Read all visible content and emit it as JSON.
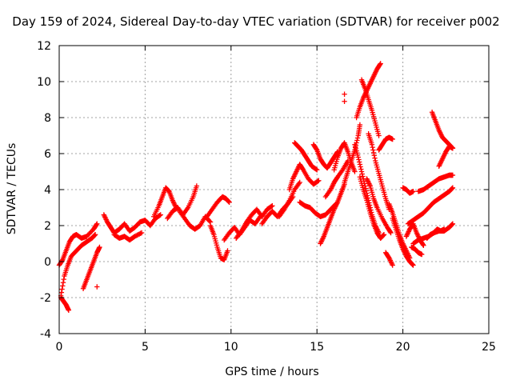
{
  "chart_data": {
    "type": "scatter",
    "title": "Day 159 of 2024, Sidereal Day-to-day VTEC variation (SDTVAR) for receiver p002",
    "xlabel": "GPS time / hours",
    "ylabel": "SDTVAR / TECUs",
    "xlim": [
      0,
      25
    ],
    "ylim": [
      -4,
      12
    ],
    "xticks": [
      0,
      5,
      10,
      15,
      20,
      25
    ],
    "yticks": [
      -4,
      -2,
      0,
      2,
      4,
      6,
      8,
      10,
      12
    ],
    "grid": true,
    "marker": "+",
    "color": "#ff0000",
    "series": [
      {
        "x": [
          0.0,
          0.2,
          0.4,
          0.6,
          0.8,
          1.0,
          1.3,
          1.6,
          2.0,
          2.2
        ],
        "y": [
          -0.2,
          0.1,
          0.6,
          1.1,
          1.4,
          1.5,
          1.3,
          1.4,
          1.8,
          2.1
        ]
      },
      {
        "x": [
          0.1,
          0.3,
          0.5,
          0.7,
          1.0,
          1.3,
          1.6,
          1.9,
          2.1
        ],
        "y": [
          -1.9,
          -0.8,
          -0.2,
          0.3,
          0.6,
          0.9,
          1.1,
          1.3,
          1.5
        ]
      },
      {
        "x": [
          0.1,
          0.25,
          0.4,
          0.55
        ],
        "y": [
          -2.0,
          -2.2,
          -2.4,
          -2.7
        ]
      },
      {
        "x": [
          1.4,
          1.6,
          1.8,
          2.0,
          2.2,
          2.35
        ],
        "y": [
          -1.5,
          -1.0,
          -0.5,
          0.0,
          0.5,
          0.8
        ]
      },
      {
        "x": [
          2.2
        ],
        "y": [
          -1.4
        ]
      },
      {
        "x": [
          2.6,
          2.8,
          3.0,
          3.2,
          3.5,
          3.8,
          4.1,
          4.4,
          4.7,
          5.0,
          5.3,
          5.6,
          5.9
        ],
        "y": [
          2.6,
          2.2,
          1.9,
          1.6,
          1.8,
          2.1,
          1.7,
          1.9,
          2.2,
          2.3,
          2.0,
          2.4,
          2.6
        ]
      },
      {
        "x": [
          3.2,
          3.5,
          3.8,
          4.1,
          4.4,
          4.8
        ],
        "y": [
          1.5,
          1.3,
          1.4,
          1.2,
          1.4,
          1.6
        ]
      },
      {
        "x": [
          5.5,
          5.8,
          6.0,
          6.2,
          6.4,
          6.6,
          6.8
        ],
        "y": [
          2.5,
          3.1,
          3.6,
          4.1,
          3.9,
          3.4,
          3.0
        ]
      },
      {
        "x": [
          6.3,
          6.6,
          6.9,
          7.2,
          7.5,
          7.8,
          8.0
        ],
        "y": [
          2.4,
          2.8,
          3.0,
          2.6,
          3.0,
          3.6,
          4.2
        ]
      },
      {
        "x": [
          7.0,
          7.3,
          7.6,
          7.9,
          8.2,
          8.5,
          8.8
        ],
        "y": [
          2.8,
          2.4,
          2.0,
          1.8,
          2.0,
          2.5,
          2.2
        ]
      },
      {
        "x": [
          8.6,
          8.9,
          9.2,
          9.5,
          9.7,
          9.9
        ],
        "y": [
          2.5,
          2.9,
          3.3,
          3.6,
          3.5,
          3.3
        ]
      },
      {
        "x": [
          8.8,
          9.0,
          9.2,
          9.4,
          9.6,
          9.8
        ],
        "y": [
          2.0,
          1.5,
          0.8,
          0.2,
          0.1,
          0.6
        ]
      },
      {
        "x": [
          9.6,
          9.9,
          10.2,
          10.5,
          10.8,
          11.1,
          11.4,
          11.7
        ],
        "y": [
          1.2,
          1.6,
          1.9,
          1.5,
          1.9,
          2.3,
          2.1,
          2.5
        ]
      },
      {
        "x": [
          10.3,
          10.6,
          10.9,
          11.2,
          11.5,
          11.8,
          12.1,
          12.4
        ],
        "y": [
          1.3,
          1.7,
          2.2,
          2.6,
          2.9,
          2.5,
          2.9,
          3.1
        ]
      },
      {
        "x": [
          11.8,
          12.1,
          12.4,
          12.7,
          13.0,
          13.3,
          13.6
        ],
        "y": [
          2.1,
          2.5,
          2.8,
          2.5,
          2.9,
          3.2,
          3.6
        ]
      },
      {
        "x": [
          12.8,
          13.1,
          13.4,
          13.7,
          14.0
        ],
        "y": [
          2.5,
          2.9,
          3.4,
          4.0,
          4.4
        ]
      },
      {
        "x": [
          13.4,
          13.6,
          13.8,
          14.0,
          14.2,
          14.5,
          14.8,
          15.1
        ],
        "y": [
          4.0,
          4.6,
          5.0,
          5.4,
          5.1,
          4.6,
          4.3,
          4.5
        ]
      },
      {
        "x": [
          13.7,
          13.9,
          14.1,
          14.3,
          14.5,
          14.7,
          15.0
        ],
        "y": [
          6.6,
          6.4,
          6.2,
          5.9,
          5.6,
          5.3,
          5.1
        ]
      },
      {
        "x": [
          14.8,
          15.0,
          15.2,
          15.4,
          15.6,
          15.8,
          16.0,
          16.2
        ],
        "y": [
          6.5,
          6.2,
          5.7,
          5.4,
          5.2,
          5.5,
          5.8,
          6.1
        ]
      },
      {
        "x": [
          14.0,
          14.3,
          14.6,
          14.9,
          15.2,
          15.5,
          15.8,
          16.1
        ],
        "y": [
          3.3,
          3.1,
          3.0,
          2.7,
          2.5,
          2.6,
          2.9,
          3.2
        ]
      },
      {
        "x": [
          15.2,
          15.4,
          15.6,
          15.8,
          16.0,
          16.2,
          16.4,
          16.6
        ],
        "y": [
          1.0,
          1.4,
          1.9,
          2.4,
          2.9,
          3.3,
          3.8,
          4.3
        ]
      },
      {
        "x": [
          15.5,
          15.8,
          16.0,
          16.2,
          16.5,
          16.8
        ],
        "y": [
          3.6,
          4.0,
          4.4,
          4.7,
          5.1,
          5.6
        ]
      },
      {
        "x": [
          16.0,
          16.2,
          16.4,
          16.6,
          16.8,
          17.0,
          17.2
        ],
        "y": [
          5.1,
          5.8,
          6.3,
          6.6,
          6.1,
          5.5,
          5.0
        ]
      },
      {
        "x": [
          16.6,
          16.8,
          17.0,
          17.2,
          17.4,
          17.5
        ],
        "y": [
          4.4,
          5.0,
          5.6,
          6.2,
          7.0,
          7.6
        ]
      },
      {
        "x": [
          16.6
        ],
        "y": [
          9.3
        ]
      },
      {
        "x": [
          16.6
        ],
        "y": [
          8.9
        ]
      },
      {
        "x": [
          17.3,
          17.5,
          17.7,
          17.9,
          18.1,
          18.3,
          18.5,
          18.7
        ],
        "y": [
          8.0,
          8.6,
          9.1,
          9.5,
          9.9,
          10.3,
          10.7,
          11.0
        ]
      },
      {
        "x": [
          17.6,
          17.8,
          18.0,
          18.2,
          18.4,
          18.6
        ],
        "y": [
          10.1,
          9.6,
          9.0,
          8.4,
          7.7,
          7.0
        ]
      },
      {
        "x": [
          17.2,
          17.4,
          17.6,
          17.8,
          18.0,
          18.2,
          18.4,
          18.6
        ],
        "y": [
          6.5,
          5.8,
          5.0,
          4.2,
          3.4,
          2.6,
          2.0,
          1.6
        ]
      },
      {
        "x": [
          17.5,
          17.7,
          17.9,
          18.1,
          18.3,
          18.5,
          18.7,
          18.9
        ],
        "y": [
          4.7,
          4.0,
          3.4,
          2.7,
          2.1,
          1.6,
          1.3,
          1.5
        ]
      },
      {
        "x": [
          17.9,
          18.1,
          18.3,
          18.5,
          18.8,
          19.1,
          19.3
        ],
        "y": [
          4.6,
          4.2,
          3.5,
          3.0,
          2.4,
          1.9,
          1.6
        ]
      },
      {
        "x": [
          18.0,
          18.2,
          18.4,
          18.6,
          18.8,
          19.0,
          19.2
        ],
        "y": [
          7.1,
          6.5,
          5.6,
          4.9,
          4.2,
          3.5,
          2.9
        ]
      },
      {
        "x": [
          18.6,
          18.8,
          19.0,
          19.2,
          19.4
        ],
        "y": [
          6.2,
          6.5,
          6.8,
          6.9,
          6.8
        ]
      },
      {
        "x": [
          19.0,
          19.2,
          19.4
        ],
        "y": [
          0.5,
          0.2,
          -0.2
        ]
      },
      {
        "x": [
          19.2,
          19.4,
          19.6,
          19.8,
          20.0,
          20.2,
          20.4
        ],
        "y": [
          3.2,
          2.7,
          2.1,
          1.5,
          1.0,
          0.6,
          0.2
        ]
      },
      {
        "x": [
          19.4,
          19.6,
          19.8,
          20.0,
          20.2,
          20.4,
          20.6
        ],
        "y": [
          2.4,
          1.8,
          1.2,
          0.7,
          0.3,
          0.0,
          -0.2
        ]
      },
      {
        "x": [
          20.0,
          20.2,
          20.4,
          20.6
        ],
        "y": [
          4.1,
          4.0,
          3.8,
          3.9
        ]
      },
      {
        "x": [
          20.2,
          20.4,
          20.6,
          20.8,
          21.0,
          21.2
        ],
        "y": [
          1.4,
          1.8,
          2.1,
          1.6,
          1.2,
          0.9
        ]
      },
      {
        "x": [
          20.5,
          20.7,
          20.9,
          21.1
        ],
        "y": [
          0.8,
          0.7,
          0.5,
          0.4
        ]
      },
      {
        "x": [
          20.6,
          20.9,
          21.2,
          21.5,
          21.8,
          22.1,
          22.4,
          22.7,
          22.9
        ],
        "y": [
          1.0,
          1.2,
          1.3,
          1.4,
          1.6,
          1.7,
          1.7,
          1.9,
          2.1
        ]
      },
      {
        "x": [
          20.9,
          21.2,
          21.5,
          21.8,
          22.1,
          22.4,
          22.7,
          22.9
        ],
        "y": [
          3.9,
          4.0,
          4.2,
          4.4,
          4.6,
          4.7,
          4.8,
          4.8
        ]
      },
      {
        "x": [
          20.3,
          20.6,
          20.9,
          21.2,
          21.5,
          21.8,
          22.1,
          22.4,
          22.7,
          22.9
        ],
        "y": [
          2.1,
          2.3,
          2.5,
          2.7,
          3.0,
          3.3,
          3.5,
          3.7,
          3.9,
          4.1
        ]
      },
      {
        "x": [
          21.7,
          21.9,
          22.1,
          22.3,
          22.5,
          22.7,
          22.9
        ],
        "y": [
          8.3,
          7.8,
          7.3,
          6.9,
          6.7,
          6.5,
          6.3
        ]
      },
      {
        "x": [
          22.1,
          22.3,
          22.5,
          22.7,
          22.9
        ],
        "y": [
          5.3,
          5.7,
          6.1,
          6.4,
          6.3
        ]
      },
      {
        "x": [
          21.4,
          21.6,
          21.8,
          22.0,
          22.2,
          22.4
        ],
        "y": [
          1.3,
          1.5,
          1.6,
          1.8,
          1.7,
          1.8
        ]
      }
    ]
  }
}
